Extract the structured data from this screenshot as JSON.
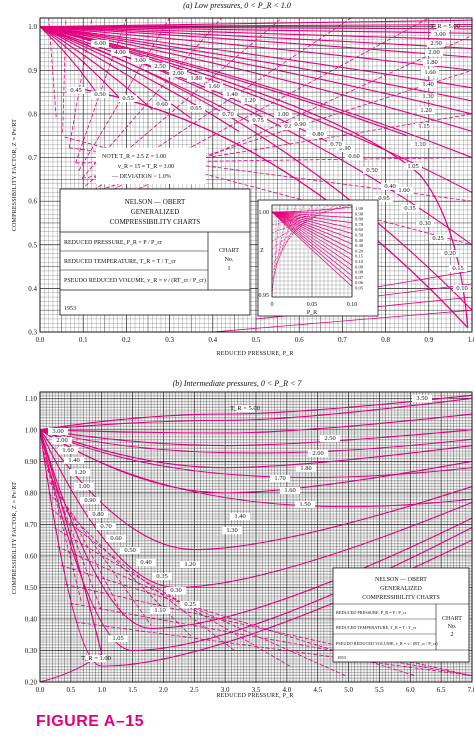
{
  "figure_caption": "FIGURE A–15",
  "chart_data": [
    {
      "type": "line",
      "title": "(a) Low pressures, 0 < P_R < 1.0",
      "xlabel": "REDUCED PRESSURE, P_R",
      "ylabel": "COMPRESSIBILITY FACTOR, Z = Pv/RT",
      "xlim": [
        0,
        1.0
      ],
      "ylim": [
        0.3,
        1.02
      ],
      "x_ticks": [
        "0.0",
        "0.1",
        "0.2",
        "0.3",
        "0.4",
        "0.5",
        "0.6",
        "0.7",
        "0.8",
        "0.9",
        "1.0"
      ],
      "y_ticks": [
        "0.3",
        "0.4",
        "0.5",
        "0.6",
        "0.7",
        "0.8",
        "0.9",
        "1.0"
      ],
      "grid": true,
      "series": [
        {
          "name": "T_R = 5.00",
          "x": [
            0,
            0.5,
            1.0
          ],
          "y": [
            1.0,
            1.01,
            1.02
          ]
        },
        {
          "name": "2.00",
          "x": [
            0,
            0.5,
            1.0
          ],
          "y": [
            1.0,
            1.0,
            1.0
          ]
        },
        {
          "name": "1.50",
          "x": [
            0,
            0.5,
            1.0
          ],
          "y": [
            1.0,
            0.97,
            0.94
          ]
        },
        {
          "name": "1.20",
          "x": [
            0,
            0.5,
            1.0
          ],
          "y": [
            1.0,
            0.93,
            0.86
          ]
        },
        {
          "name": "1.10",
          "x": [
            0,
            0.5,
            1.0
          ],
          "y": [
            1.0,
            0.91,
            0.81
          ]
        },
        {
          "name": "1.00",
          "x": [
            0,
            0.5,
            1.0
          ],
          "y": [
            1.0,
            0.88,
            0.3
          ]
        },
        {
          "name": "0.95",
          "x": [
            0,
            0.5,
            0.9
          ],
          "y": [
            1.0,
            0.86,
            0.69
          ]
        },
        {
          "name": "0.90",
          "x": [
            0,
            0.5,
            0.8
          ],
          "y": [
            1.0,
            0.83,
            0.72
          ]
        },
        {
          "name": "0.85",
          "x": [
            0,
            0.4,
            0.7
          ],
          "y": [
            1.0,
            0.85,
            0.72
          ]
        },
        {
          "name": "0.80",
          "x": [
            0,
            0.4,
            0.6
          ],
          "y": [
            1.0,
            0.83,
            0.73
          ]
        },
        {
          "name": "0.75",
          "x": [
            0,
            0.3,
            0.45
          ],
          "y": [
            1.0,
            0.85,
            0.77
          ]
        },
        {
          "name": "0.70",
          "x": [
            0,
            0.25,
            0.35
          ],
          "y": [
            1.0,
            0.86,
            0.8
          ]
        },
        {
          "name": "0.65",
          "x": [
            0,
            0.17,
            0.25
          ],
          "y": [
            1.0,
            0.87,
            0.82
          ]
        },
        {
          "name": "0.60",
          "x": [
            0,
            0.12,
            0.17
          ],
          "y": [
            1.0,
            0.88,
            0.84
          ]
        }
      ],
      "curve_labels": [
        "T_R = 5.00",
        "3.00",
        "2.50",
        "2.00",
        "1.80",
        "1.60",
        "1.40",
        "1.30",
        "1.20",
        "1.15",
        "1.10",
        "1.05",
        "1.00",
        "0.95",
        "0.90",
        "0.85",
        "0.80",
        "0.75",
        "0.70",
        "0.65",
        "0.60",
        "0.55",
        "0.50",
        "0.45",
        "6.00",
        "4.00",
        "3.00",
        "2.50",
        "2.00",
        "1.80",
        "1.60",
        "1.40",
        "1.20",
        "1.00",
        "0.90",
        "0.80",
        "0.70",
        "0.60",
        "0.50",
        "0.40",
        "0.35",
        "0.30",
        "0.25",
        "0.20",
        "0.15",
        "0.10"
      ],
      "note": {
        "line1": "NOTE     T_R = 2.5   Z = 1.00",
        "line2": "v_R = 15  ≈  T_R = 3.00",
        "line3": "— DEVIATION > 1.0%"
      },
      "info_box": {
        "title_lines": [
          "NELSON — OBERT",
          "GENERALIZED",
          "COMPRESSIBILITY CHARTS"
        ],
        "rows": [
          "REDUCED PRESSURE, P_R = P / P_cr",
          "REDUCED TEMPERATURE, T_R = T / T_cr",
          "PSEUDO REDUCED VOLUME, v_R = v / (RT_cr / P_cr)"
        ],
        "chart_label": [
          "CHART",
          "No.",
          "1"
        ],
        "year": "1953"
      },
      "inset": {
        "xlabel": "P_R",
        "ylabel": "Z",
        "x_ticks": [
          "0",
          "0.05",
          "0.10"
        ],
        "y_ticks": [
          "0.95",
          "1.00"
        ],
        "right_labels": [
          "1.00",
          "0.90",
          "0.80",
          "0.70",
          "0.60",
          "0.50",
          "0.40",
          "0.30",
          "0.20",
          "0.15",
          "0.10",
          "0.09",
          "0.08",
          "0.07",
          "0.06",
          "0.05"
        ]
      }
    },
    {
      "type": "line",
      "title": "(b) Intermediate pressures, 0 < P_R < 7",
      "xlabel": "REDUCED PRESSURE, P_R",
      "ylabel": "COMPRESSIBILITY FACTOR, Z = Pv/RT",
      "xlim": [
        0,
        7.0
      ],
      "ylim": [
        0.2,
        1.12
      ],
      "x_ticks": [
        "0.0",
        "0.5",
        "1.0",
        "1.5",
        "2.0",
        "2.5",
        "3.0",
        "3.5",
        "4.0",
        "4.5",
        "5.0",
        "5.5",
        "6.0",
        "6.5",
        "7.0"
      ],
      "y_ticks": [
        "0.20",
        "0.30",
        "0.40",
        "0.50",
        "0.60",
        "0.70",
        "0.80",
        "0.90",
        "1.00",
        "1.10"
      ],
      "grid": true,
      "series": [
        {
          "name": "T_R = 5.00",
          "x": [
            0,
            3,
            7
          ],
          "y": [
            1.0,
            1.05,
            1.11
          ]
        },
        {
          "name": "3.50",
          "x": [
            0,
            3,
            7
          ],
          "y": [
            1.0,
            1.03,
            1.1
          ]
        },
        {
          "name": "2.50",
          "x": [
            0,
            3,
            7
          ],
          "y": [
            1.0,
            0.99,
            1.05
          ]
        },
        {
          "name": "2.00",
          "x": [
            0,
            3,
            7
          ],
          "y": [
            1.0,
            0.95,
            1.0
          ]
        },
        {
          "name": "1.70",
          "x": [
            0,
            3,
            7
          ],
          "y": [
            1.0,
            0.88,
            0.95
          ]
        },
        {
          "name": "1.50",
          "x": [
            0,
            3,
            7
          ],
          "y": [
            1.0,
            0.8,
            0.9
          ]
        },
        {
          "name": "1.30",
          "x": [
            0,
            2.5,
            7
          ],
          "y": [
            1.0,
            0.62,
            0.82
          ]
        },
        {
          "name": "1.20",
          "x": [
            0,
            2.2,
            7
          ],
          "y": [
            1.0,
            0.5,
            0.77
          ]
        },
        {
          "name": "1.10",
          "x": [
            0,
            1.8,
            7
          ],
          "y": [
            1.0,
            0.37,
            0.72
          ]
        },
        {
          "name": "1.05",
          "x": [
            0,
            1.5,
            7
          ],
          "y": [
            1.0,
            0.3,
            0.69
          ]
        },
        {
          "name": "T_R = 1.00",
          "x": [
            0,
            1.0,
            7
          ],
          "y": [
            1.0,
            0.25,
            0.65
          ]
        }
      ],
      "curve_labels": [
        "T_R = 5.00",
        "3.50",
        "2.50",
        "2.00",
        "1.80",
        "1.70",
        "1.60",
        "1.50",
        "1.40",
        "1.30",
        "1.20",
        "1.10",
        "1.05",
        "T_R = 1.00",
        "3.00",
        "2.00",
        "1.60",
        "1.40",
        "1.20",
        "1.00",
        "0.90",
        "0.80",
        "0.70",
        "0.60",
        "0.50",
        "0.40",
        "0.35",
        "0.30",
        "0.25"
      ],
      "info_box": {
        "title_lines": [
          "NELSON — OBERT",
          "GENERALIZED",
          "COMPRESSIBILITY CHARTS"
        ],
        "rows": [
          "REDUCED PRESSURE, P_R = P / P_cr",
          "REDUCED TEMPERATURE, T_R = T / T_cr",
          "PSEUDO REDUCED VOLUME, v_R = v / (RT_cr / P_cr)"
        ],
        "chart_label": [
          "CHART",
          "No.",
          "2"
        ],
        "year": "1953"
      }
    }
  ],
  "colors": {
    "curve": "#e4007c",
    "dashed": "#e4007c",
    "grid": "#222222",
    "caption": "#e4007c"
  }
}
